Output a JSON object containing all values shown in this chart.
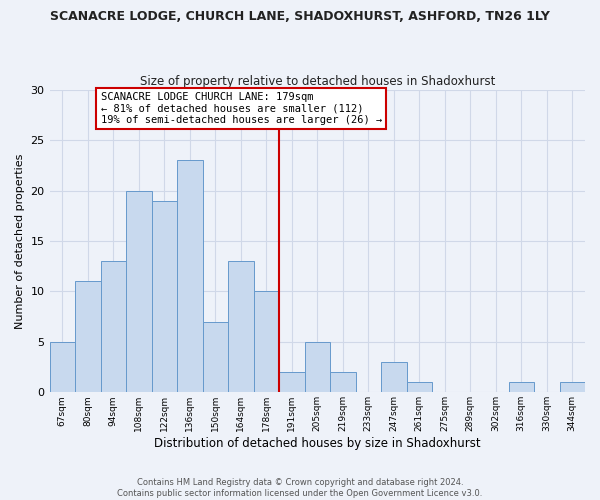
{
  "title": "SCANACRE LODGE, CHURCH LANE, SHADOXHURST, ASHFORD, TN26 1LY",
  "subtitle": "Size of property relative to detached houses in Shadoxhurst",
  "xlabel": "Distribution of detached houses by size in Shadoxhurst",
  "ylabel": "Number of detached properties",
  "bar_labels": [
    "67sqm",
    "80sqm",
    "94sqm",
    "108sqm",
    "122sqm",
    "136sqm",
    "150sqm",
    "164sqm",
    "178sqm",
    "191sqm",
    "205sqm",
    "219sqm",
    "233sqm",
    "247sqm",
    "261sqm",
    "275sqm",
    "289sqm",
    "302sqm",
    "316sqm",
    "330sqm",
    "344sqm"
  ],
  "bar_values": [
    5,
    11,
    13,
    20,
    19,
    23,
    7,
    13,
    10,
    2,
    5,
    2,
    0,
    3,
    1,
    0,
    0,
    0,
    1,
    0,
    1
  ],
  "bar_color": "#c8d9ee",
  "bar_edge_color": "#6699cc",
  "reference_line_index": 8,
  "reference_line_color": "#cc0000",
  "annotation_line1": "SCANACRE LODGE CHURCH LANE: 179sqm",
  "annotation_line2": "← 81% of detached houses are smaller (112)",
  "annotation_line3": "19% of semi-detached houses are larger (26) →",
  "annotation_box_color": "#ffffff",
  "annotation_box_edge_color": "#cc0000",
  "ylim": [
    0,
    30
  ],
  "yticks": [
    0,
    5,
    10,
    15,
    20,
    25,
    30
  ],
  "footer_text": "Contains HM Land Registry data © Crown copyright and database right 2024.\nContains public sector information licensed under the Open Government Licence v3.0.",
  "bg_color": "#eef2f9",
  "grid_color": "#d0d8e8",
  "title_fontsize": 9,
  "subtitle_fontsize": 8.5
}
